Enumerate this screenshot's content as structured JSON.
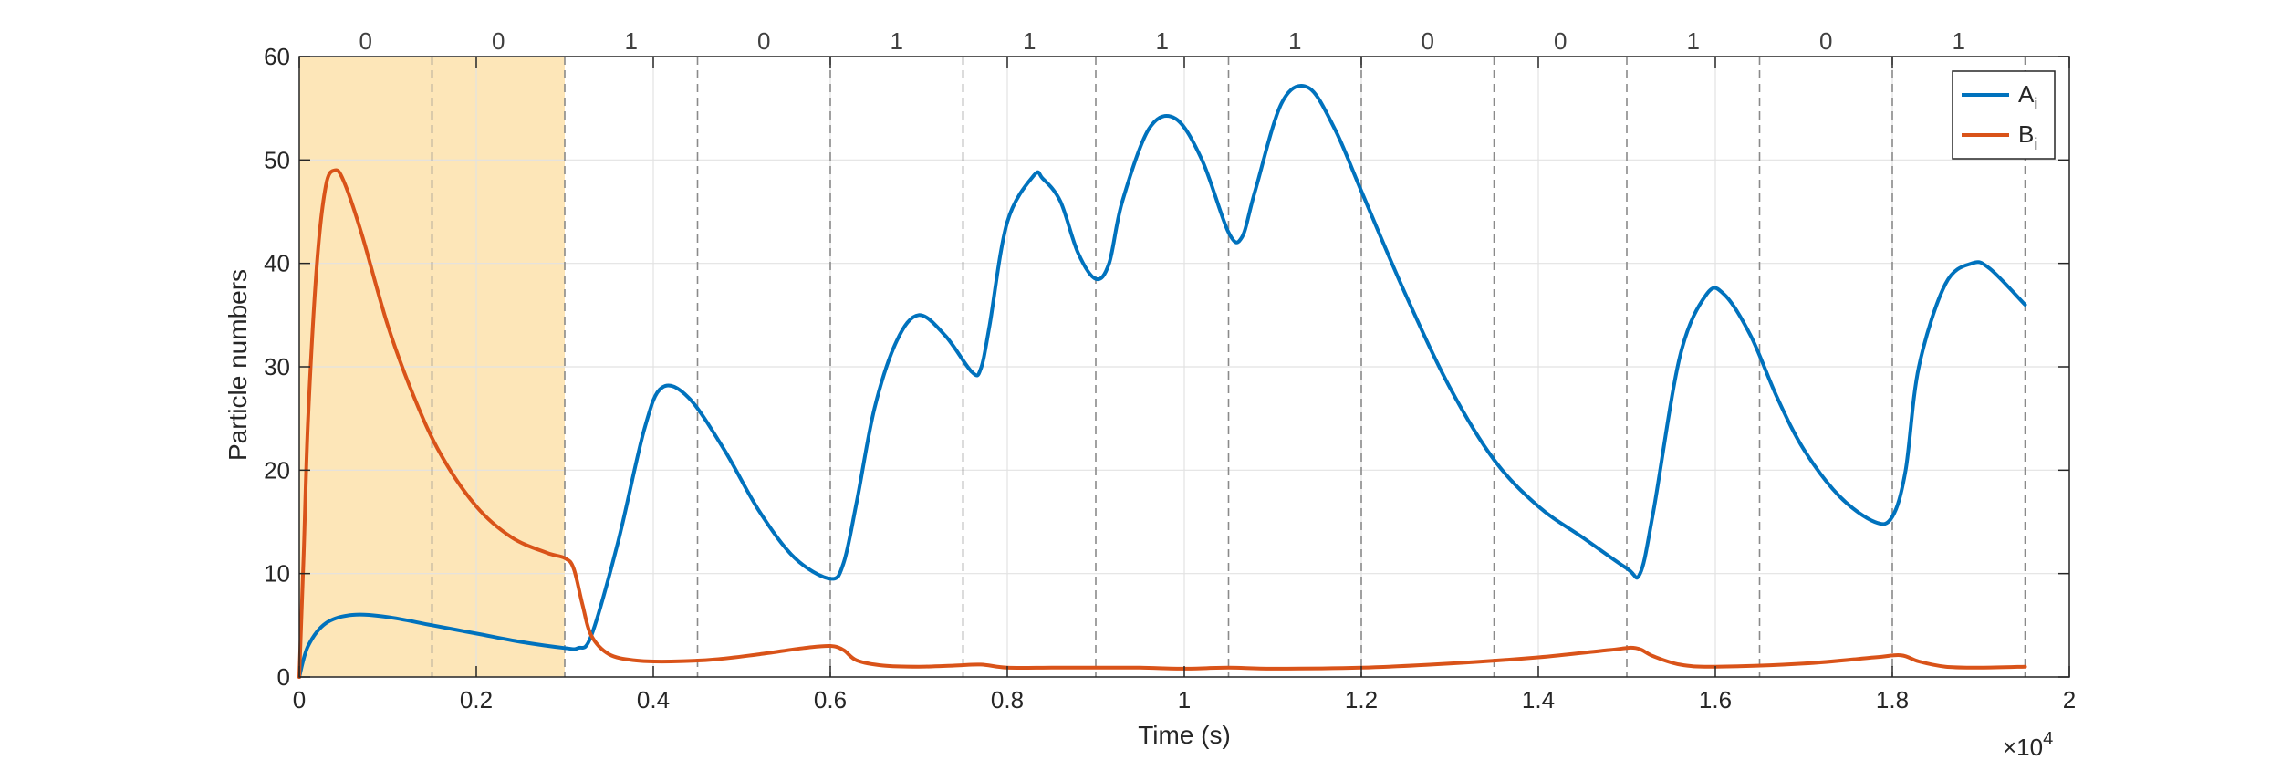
{
  "chart_data": {
    "type": "line",
    "xlabel": "Time (s)",
    "ylabel": "Particle numbers",
    "x_multiplier": {
      "base": "×10",
      "exp": "4"
    },
    "xlim": [
      0,
      2
    ],
    "ylim": [
      0,
      60
    ],
    "xticks": [
      0,
      0.2,
      0.4,
      0.6,
      0.8,
      1,
      1.2,
      1.4,
      1.6,
      1.8,
      2
    ],
    "xtick_labels": [
      "0",
      "0.2",
      "0.4",
      "0.6",
      "0.8",
      "1",
      "1.2",
      "1.4",
      "1.6",
      "1.8",
      "2"
    ],
    "yticks": [
      0,
      10,
      20,
      30,
      40,
      50,
      60
    ],
    "ytick_labels": [
      "0",
      "10",
      "20",
      "30",
      "40",
      "50",
      "60"
    ],
    "grid": true,
    "legend_position": "top-right",
    "shaded_region": {
      "x": [
        0,
        0.3
      ],
      "color": "#fde6b8"
    },
    "dashed_lines_x": [
      0.15,
      0.3,
      0.45,
      0.6,
      0.75,
      0.9,
      1.05,
      1.2,
      1.35,
      1.5,
      1.65,
      1.8,
      1.95
    ],
    "interval_labels": {
      "x": [
        0.075,
        0.225,
        0.375,
        0.525,
        0.675,
        0.825,
        0.975,
        1.125,
        1.275,
        1.425,
        1.575,
        1.725,
        1.875
      ],
      "labels": [
        "0",
        "0",
        "1",
        "0",
        "1",
        "1",
        "1",
        "1",
        "0",
        "0",
        "1",
        "0",
        "1"
      ]
    },
    "series": [
      {
        "name": "A",
        "name_sub": "i",
        "color": "#0072bd",
        "x": [
          0,
          0.01,
          0.03,
          0.06,
          0.1,
          0.15,
          0.2,
          0.25,
          0.3,
          0.315,
          0.33,
          0.36,
          0.39,
          0.41,
          0.44,
          0.48,
          0.52,
          0.56,
          0.6,
          0.615,
          0.63,
          0.65,
          0.675,
          0.7,
          0.73,
          0.76,
          0.77,
          0.78,
          0.8,
          0.83,
          0.84,
          0.86,
          0.88,
          0.9,
          0.915,
          0.93,
          0.96,
          0.99,
          1.02,
          1.05,
          1.065,
          1.08,
          1.11,
          1.14,
          1.17,
          1.2,
          1.25,
          1.3,
          1.35,
          1.4,
          1.45,
          1.5,
          1.515,
          1.53,
          1.56,
          1.59,
          1.61,
          1.64,
          1.67,
          1.7,
          1.74,
          1.78,
          1.8,
          1.815,
          1.83,
          1.86,
          1.89,
          1.91,
          1.95
        ],
        "y": [
          0,
          3,
          5.2,
          6,
          5.8,
          5,
          4.2,
          3.4,
          2.8,
          2.8,
          4,
          13,
          24,
          28,
          27,
          22,
          16,
          11.5,
          9.5,
          11,
          17,
          26,
          32.5,
          35,
          33,
          29.5,
          29.8,
          34,
          44,
          48.5,
          48.2,
          46,
          41,
          38.5,
          40,
          46,
          53,
          54,
          50,
          43,
          42.5,
          47,
          55.5,
          57,
          53,
          47,
          37,
          28,
          21,
          16.5,
          13.5,
          10.5,
          10,
          16,
          31,
          37,
          37,
          33,
          27,
          22,
          17.5,
          15,
          15.5,
          20,
          30,
          38,
          40,
          39.5,
          36
        ]
      },
      {
        "name": "B",
        "name_sub": "i",
        "color": "#d95319",
        "x": [
          0,
          0.005,
          0.01,
          0.02,
          0.03,
          0.04,
          0.05,
          0.07,
          0.1,
          0.13,
          0.16,
          0.2,
          0.24,
          0.28,
          0.3,
          0.31,
          0.32,
          0.33,
          0.35,
          0.38,
          0.42,
          0.47,
          0.52,
          0.57,
          0.6,
          0.615,
          0.63,
          0.66,
          0.7,
          0.74,
          0.77,
          0.8,
          0.85,
          0.9,
          0.95,
          1.0,
          1.05,
          1.1,
          1.2,
          1.3,
          1.4,
          1.48,
          1.51,
          1.53,
          1.56,
          1.6,
          1.7,
          1.78,
          1.81,
          1.83,
          1.86,
          1.9,
          1.95
        ],
        "y": [
          0,
          12,
          25,
          40,
          47.5,
          49,
          48,
          43,
          34,
          27,
          21.5,
          16.5,
          13.5,
          12,
          11.5,
          10.5,
          7,
          4,
          2.2,
          1.6,
          1.5,
          1.7,
          2.2,
          2.8,
          3.0,
          2.6,
          1.6,
          1.1,
          1.0,
          1.1,
          1.2,
          0.9,
          0.9,
          0.9,
          0.9,
          0.8,
          0.9,
          0.8,
          0.9,
          1.3,
          1.9,
          2.6,
          2.8,
          2.0,
          1.2,
          1.0,
          1.3,
          1.9,
          2.1,
          1.5,
          1.0,
          0.9,
          1.0
        ]
      }
    ]
  }
}
